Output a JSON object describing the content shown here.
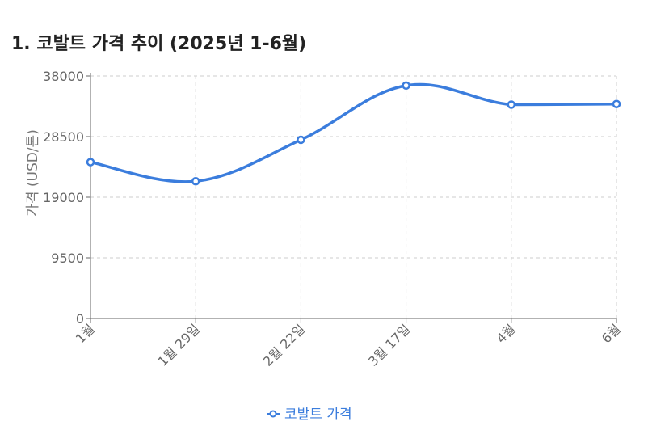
{
  "title": "1. 코발트 가격 추이 (2025년 1-6월)",
  "colors": {
    "series": "#3b7ddd",
    "grid": "#cccccc",
    "axis": "#666666"
  },
  "chart_data": {
    "type": "line",
    "categories": [
      "1월",
      "1월 29일",
      "2월 22일",
      "3월 17일",
      "4월",
      "6월"
    ],
    "series": [
      {
        "name": "코발트 가격",
        "values": [
          24500,
          21500,
          28000,
          36500,
          33500,
          33600
        ]
      }
    ],
    "ylabel": "가격 (USD/톤)",
    "xlabel": "",
    "ylim": [
      0,
      38000
    ],
    "yticks": [
      "0",
      "9500",
      "19000",
      "28500",
      "38000"
    ],
    "grid": true,
    "legend": "bottom"
  }
}
